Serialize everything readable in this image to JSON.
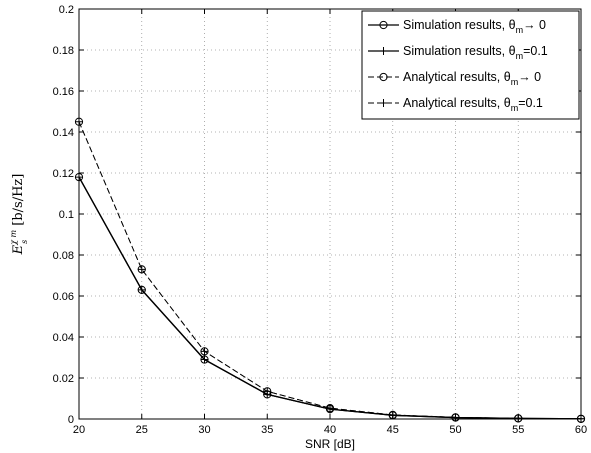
{
  "chart_data": {
    "type": "line",
    "title": "",
    "xlabel": "SNR [dB]",
    "ylabel": {
      "symbol": "E",
      "superscript": "χ m",
      "subscript": "s",
      "unit": "[b/s/Hz]"
    },
    "xlim": [
      20,
      60
    ],
    "ylim": [
      0,
      0.2
    ],
    "xticks": [
      "20",
      "25",
      "30",
      "35",
      "40",
      "45",
      "50",
      "55",
      "60"
    ],
    "yticks": [
      "0",
      "0.02",
      "0.04",
      "0.06",
      "0.08",
      "0.1",
      "0.12",
      "0.14",
      "0.16",
      "0.18",
      "0.2"
    ],
    "grid": true,
    "legend_position": "top-right",
    "x": [
      20,
      25,
      30,
      35,
      40,
      45,
      50,
      55,
      60
    ],
    "series": [
      {
        "legend_text": "Simulation results, θ",
        "legend_sub": "m",
        "legend_tail": "→ 0",
        "style": "solid",
        "marker": "circle",
        "values": [
          0.118,
          0.063,
          0.029,
          0.012,
          0.0048,
          0.0018,
          0.0007,
          0.0003,
          0.0001
        ]
      },
      {
        "legend_text": "Simulation results, θ",
        "legend_sub": "m",
        "legend_tail": "=0.1",
        "style": "solid",
        "marker": "plus",
        "values": [
          0.118,
          0.063,
          0.029,
          0.012,
          0.0048,
          0.0018,
          0.0007,
          0.0003,
          0.0001
        ]
      },
      {
        "legend_text": "Analytical results, θ",
        "legend_sub": "m",
        "legend_tail": "→ 0",
        "style": "dashed",
        "marker": "circle",
        "values": [
          0.145,
          0.073,
          0.033,
          0.0135,
          0.0053,
          0.002,
          0.0008,
          0.0003,
          0.0001
        ]
      },
      {
        "legend_text": "Analytical results, θ",
        "legend_sub": "m",
        "legend_tail": "=0.1",
        "style": "dashed",
        "marker": "plus",
        "values": [
          0.145,
          0.073,
          0.033,
          0.0135,
          0.0053,
          0.002,
          0.0008,
          0.0003,
          0.0001
        ]
      }
    ]
  }
}
